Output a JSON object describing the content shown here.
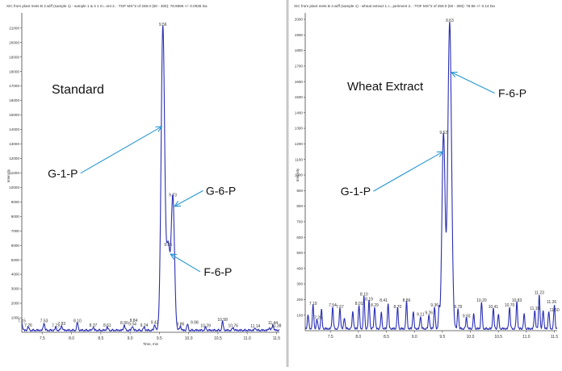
{
  "colors": {
    "trace": "#2a2fb5",
    "arrow": "#2596d3",
    "divider": "#c7c7c7",
    "text": "#111111"
  },
  "chart_data": [
    {
      "type": "line",
      "title": "XIC from plant mets B 2.wiff (sample 1) - sample 1 & 3 1 m...ent 2.. -TOF MS^2 of 259.0 (50 - 300): 78.9596 +/- 0.0036 Da",
      "ylabel": "Intensity",
      "xlabel": "Time, min",
      "xlim": [
        7.15,
        11.55
      ],
      "ylim": [
        0,
        21600
      ],
      "yticks": [
        1000,
        2000,
        3000,
        4000,
        5000,
        6000,
        7000,
        8000,
        9000,
        10000,
        11000,
        12000,
        13000,
        14000,
        15000,
        16000,
        17000,
        18000,
        19000,
        20000,
        21000
      ],
      "xticks": [
        7.5,
        8.0,
        8.5,
        9.0,
        9.5,
        10.0,
        10.5,
        11.0,
        11.5
      ],
      "sample_label": "Standard",
      "peaks": [
        {
          "t": 9.56,
          "h": 21000,
          "w": 0.03
        },
        {
          "t": 9.73,
          "h": 9200,
          "w": 0.028
        },
        {
          "t": 9.65,
          "h": 5800,
          "w": 0.03
        }
      ],
      "baseline_peaks": [
        {
          "t": 7.15,
          "h": 520
        },
        {
          "t": 7.26,
          "h": 220
        },
        {
          "t": 7.53,
          "h": 520
        },
        {
          "t": 7.73,
          "h": 200
        },
        {
          "t": 7.83,
          "h": 340
        },
        {
          "t": 8.1,
          "h": 520
        },
        {
          "t": 8.37,
          "h": 220
        },
        {
          "t": 8.61,
          "h": 220
        },
        {
          "t": 8.9,
          "h": 380
        },
        {
          "t": 9.04,
          "h": 300
        },
        {
          "t": 9.24,
          "h": 220
        },
        {
          "t": 9.42,
          "h": 420
        },
        {
          "t": 9.86,
          "h": 300
        },
        {
          "t": 9.98,
          "h": 420
        },
        {
          "t": 10.29,
          "h": 200
        },
        {
          "t": 10.58,
          "h": 600
        },
        {
          "t": 10.76,
          "h": 200
        },
        {
          "t": 11.14,
          "h": 160
        },
        {
          "t": 11.44,
          "h": 400
        },
        {
          "t": 11.38,
          "h": 200
        }
      ],
      "peak_labels": [
        {
          "text": "9.56",
          "t": 9.56,
          "v": 21000
        },
        {
          "text": "9.73",
          "t": 9.73,
          "v": 9200
        },
        {
          "text": "9.65",
          "t": 9.65,
          "v": 5800
        },
        {
          "text": "7.15",
          "t": 7.15,
          "v": 520
        },
        {
          "text": "7.26",
          "t": 7.26,
          "v": 220
        },
        {
          "text": "7.53",
          "t": 7.53,
          "v": 520
        },
        {
          "text": "7.73",
          "t": 7.73,
          "v": 200
        },
        {
          "text": "7.83",
          "t": 7.83,
          "v": 340
        },
        {
          "text": "8.10",
          "t": 8.1,
          "v": 520
        },
        {
          "text": "8.37",
          "t": 8.37,
          "v": 220
        },
        {
          "text": "8.61",
          "t": 8.61,
          "v": 220
        },
        {
          "text": "8.90",
          "t": 8.9,
          "v": 380
        },
        {
          "text": "8.84",
          "t": 9.06,
          "v": 560
        },
        {
          "text": "9.04",
          "t": 9.04,
          "v": 300
        },
        {
          "text": "9.24",
          "t": 9.24,
          "v": 220
        },
        {
          "text": "9.42",
          "t": 9.42,
          "v": 420
        },
        {
          "text": "9.86",
          "t": 9.86,
          "v": 300
        },
        {
          "text": "9.98",
          "t": 10.1,
          "v": 420
        },
        {
          "text": "10.29",
          "t": 10.29,
          "v": 200
        },
        {
          "text": "10.58",
          "t": 10.58,
          "v": 600
        },
        {
          "text": "10.76",
          "t": 10.76,
          "v": 200
        },
        {
          "text": "11.14",
          "t": 11.14,
          "v": 160
        },
        {
          "text": "11.44",
          "t": 11.44,
          "v": 400
        },
        {
          "text": "11.38",
          "t": 11.5,
          "v": 200
        }
      ],
      "annotations": [
        {
          "text": "G-1-P",
          "t": 7.85,
          "v": 10700,
          "arrow_to": [
            9.54,
            14200
          ]
        },
        {
          "text": "G-6-P",
          "t": 10.55,
          "v": 9500,
          "arrow_to": [
            9.76,
            8700
          ]
        },
        {
          "text": "F-6-P",
          "t": 10.5,
          "v": 3900,
          "arrow_to": [
            9.69,
            5400
          ]
        }
      ]
    },
    {
      "type": "line",
      "title": "XIC from plant mets B 4.wiff (sample 1) - wheat extract 1 c...periment 2.. -TOF MS^2 of 259.0 (50 - 300): 78.96 +/- 0.14 Da",
      "ylabel": "Intensity",
      "xlabel": "",
      "xlim": [
        7.05,
        11.55
      ],
      "ylim": [
        0,
        2000
      ],
      "yticks": [
        100,
        200,
        300,
        400,
        500,
        600,
        700,
        800,
        900,
        1000,
        1100,
        1200,
        1300,
        1400,
        1500,
        1600,
        1700,
        1800,
        1900,
        2000
      ],
      "xticks": [
        7.5,
        8.0,
        8.5,
        9.0,
        9.5,
        10.0,
        10.5,
        11.0,
        11.5
      ],
      "sample_label": "Wheat Extract",
      "peaks": [
        {
          "t": 9.63,
          "h": 1970,
          "w": 0.033
        },
        {
          "t": 9.52,
          "h": 1250,
          "w": 0.028
        }
      ],
      "baseline_peaks": [
        {
          "t": 7.1,
          "h": 90
        },
        {
          "t": 7.19,
          "h": 150
        },
        {
          "t": 7.26,
          "h": 60
        },
        {
          "t": 7.34,
          "h": 120
        },
        {
          "t": 7.54,
          "h": 140
        },
        {
          "t": 7.67,
          "h": 130
        },
        {
          "t": 7.75,
          "h": 70
        },
        {
          "t": 7.9,
          "h": 110
        },
        {
          "t": 8.01,
          "h": 150
        },
        {
          "t": 8.1,
          "h": 210
        },
        {
          "t": 8.19,
          "h": 180
        },
        {
          "t": 8.29,
          "h": 140
        },
        {
          "t": 8.41,
          "h": 100
        },
        {
          "t": 8.53,
          "h": 160
        },
        {
          "t": 8.7,
          "h": 130
        },
        {
          "t": 8.86,
          "h": 170
        },
        {
          "t": 8.98,
          "h": 110
        },
        {
          "t": 9.11,
          "h": 80
        },
        {
          "t": 9.26,
          "h": 90
        },
        {
          "t": 9.36,
          "h": 140
        },
        {
          "t": 9.44,
          "h": 120
        },
        {
          "t": 9.78,
          "h": 130
        },
        {
          "t": 9.93,
          "h": 70
        },
        {
          "t": 10.06,
          "h": 90
        },
        {
          "t": 10.2,
          "h": 170
        },
        {
          "t": 10.41,
          "h": 130
        },
        {
          "t": 10.5,
          "h": 90
        },
        {
          "t": 10.7,
          "h": 140
        },
        {
          "t": 10.83,
          "h": 170
        },
        {
          "t": 10.96,
          "h": 90
        },
        {
          "t": 11.15,
          "h": 120
        },
        {
          "t": 11.23,
          "h": 220
        },
        {
          "t": 11.3,
          "h": 120
        },
        {
          "t": 11.4,
          "h": 110
        },
        {
          "t": 11.5,
          "h": 150
        }
      ],
      "peak_labels": [
        {
          "text": "9.63",
          "t": 9.63,
          "v": 1970
        },
        {
          "text": "9.52",
          "t": 9.52,
          "v": 1250
        },
        {
          "text": "7.19",
          "t": 7.19,
          "v": 150
        },
        {
          "text": "7.54",
          "t": 7.54,
          "v": 140
        },
        {
          "text": "7.67",
          "t": 7.67,
          "v": 130
        },
        {
          "text": "7.25",
          "t": 7.28,
          "v": 60
        },
        {
          "text": "8.01",
          "t": 8.01,
          "v": 150
        },
        {
          "text": "8.10",
          "t": 8.1,
          "v": 210
        },
        {
          "text": "8.19",
          "t": 8.19,
          "v": 180
        },
        {
          "text": "8.29",
          "t": 8.29,
          "v": 140
        },
        {
          "text": "8.41",
          "t": 8.45,
          "v": 170
        },
        {
          "text": "8.70",
          "t": 8.7,
          "v": 130
        },
        {
          "text": "8.86",
          "t": 8.86,
          "v": 170
        },
        {
          "text": "9.11",
          "t": 9.11,
          "v": 80
        },
        {
          "text": "9.36",
          "t": 9.36,
          "v": 140
        },
        {
          "text": "9.26",
          "t": 9.26,
          "v": 90
        },
        {
          "text": "9.78",
          "t": 9.78,
          "v": 130
        },
        {
          "text": "9.93",
          "t": 9.93,
          "v": 70
        },
        {
          "text": "10.20",
          "t": 10.2,
          "v": 170
        },
        {
          "text": "10.41",
          "t": 10.41,
          "v": 130
        },
        {
          "text": "10.70",
          "t": 10.7,
          "v": 140
        },
        {
          "text": "10.83",
          "t": 10.83,
          "v": 170
        },
        {
          "text": "11.23",
          "t": 11.23,
          "v": 220
        },
        {
          "text": "11.15",
          "t": 11.15,
          "v": 120
        },
        {
          "text": "11.26",
          "t": 11.45,
          "v": 160
        },
        {
          "text": "11.50",
          "t": 11.5,
          "v": 110
        }
      ],
      "annotations": [
        {
          "text": "G-1-P",
          "t": 7.95,
          "v": 870,
          "arrow_to": [
            9.51,
            1150
          ]
        },
        {
          "text": "F-6-P",
          "t": 10.75,
          "v": 1500,
          "arrow_to": [
            9.66,
            1660
          ]
        }
      ]
    }
  ]
}
